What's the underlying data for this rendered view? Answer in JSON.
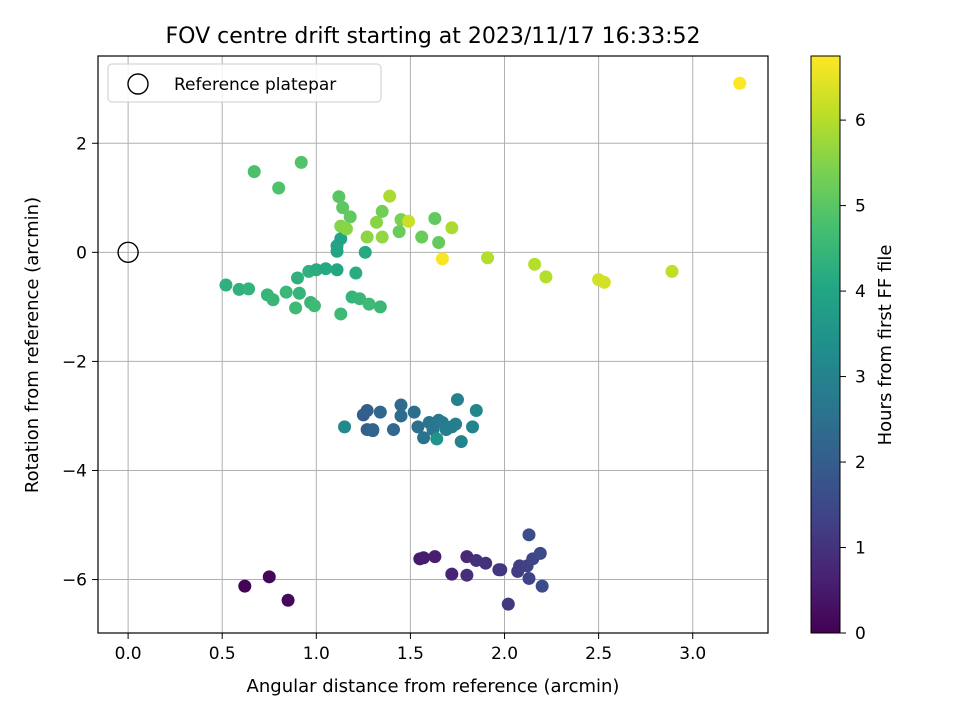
{
  "chart_data": {
    "type": "scatter",
    "title": "FOV centre drift starting at 2023/11/17 16:33:52",
    "xlabel": "Angular distance from reference (arcmin)",
    "ylabel": "Rotation from reference (arcmin)",
    "xlim": [
      -0.16,
      3.4
    ],
    "ylim": [
      -6.98,
      3.6
    ],
    "x_ticks": [
      0.0,
      0.5,
      1.0,
      1.5,
      2.0,
      2.5,
      3.0
    ],
    "x_tick_labels": [
      "0.0",
      "0.5",
      "1.0",
      "1.5",
      "2.0",
      "2.5",
      "3.0"
    ],
    "y_ticks": [
      -6,
      -4,
      -2,
      0,
      2
    ],
    "y_tick_labels": [
      "−6",
      "−4",
      "−2",
      "0",
      "2"
    ],
    "grid": true,
    "legend": {
      "placement": "top-left",
      "entries": [
        {
          "label": "Reference platepar",
          "marker": "open-circle"
        }
      ]
    },
    "reference_point": {
      "x": 0,
      "y": 0
    },
    "colorbar": {
      "label": "Hours from first FF file",
      "range": [
        0,
        6.75
      ],
      "ticks": [
        0,
        1,
        2,
        3,
        4,
        5,
        6
      ],
      "tick_labels": [
        "0",
        "1",
        "2",
        "3",
        "4",
        "5",
        "6"
      ],
      "colormap": "viridis"
    },
    "points": [
      {
        "x": 0.62,
        "y": -6.12,
        "c": 0.05
      },
      {
        "x": 0.75,
        "y": -5.95,
        "c": 0.1
      },
      {
        "x": 0.85,
        "y": -6.38,
        "c": 0.15
      },
      {
        "x": 1.55,
        "y": -5.62,
        "c": 0.5
      },
      {
        "x": 1.57,
        "y": -5.6,
        "c": 0.55
      },
      {
        "x": 1.63,
        "y": -5.58,
        "c": 0.6
      },
      {
        "x": 1.72,
        "y": -5.9,
        "c": 0.7
      },
      {
        "x": 1.8,
        "y": -5.58,
        "c": 0.8
      },
      {
        "x": 1.8,
        "y": -5.92,
        "c": 0.9
      },
      {
        "x": 1.85,
        "y": -5.65,
        "c": 0.95
      },
      {
        "x": 1.9,
        "y": -5.7,
        "c": 1.0
      },
      {
        "x": 1.97,
        "y": -5.82,
        "c": 1.05
      },
      {
        "x": 1.98,
        "y": -5.82,
        "c": 1.1
      },
      {
        "x": 2.02,
        "y": -6.45,
        "c": 1.15
      },
      {
        "x": 2.07,
        "y": -5.85,
        "c": 1.2
      },
      {
        "x": 2.08,
        "y": -5.75,
        "c": 1.25
      },
      {
        "x": 2.12,
        "y": -5.75,
        "c": 1.3
      },
      {
        "x": 2.13,
        "y": -5.98,
        "c": 1.35
      },
      {
        "x": 2.15,
        "y": -5.62,
        "c": 1.4
      },
      {
        "x": 2.19,
        "y": -5.52,
        "c": 1.5
      },
      {
        "x": 2.2,
        "y": -6.12,
        "c": 1.55
      },
      {
        "x": 2.13,
        "y": -5.18,
        "c": 1.6
      },
      {
        "x": 1.25,
        "y": -2.98,
        "c": 2.0
      },
      {
        "x": 1.27,
        "y": -2.9,
        "c": 2.05
      },
      {
        "x": 1.27,
        "y": -3.25,
        "c": 2.1
      },
      {
        "x": 1.3,
        "y": -3.27,
        "c": 2.15
      },
      {
        "x": 1.3,
        "y": -3.25,
        "c": 2.2
      },
      {
        "x": 1.34,
        "y": -2.93,
        "c": 2.25
      },
      {
        "x": 1.41,
        "y": -3.25,
        "c": 2.3
      },
      {
        "x": 1.45,
        "y": -2.8,
        "c": 2.35
      },
      {
        "x": 1.45,
        "y": -3.0,
        "c": 2.4
      },
      {
        "x": 1.52,
        "y": -2.93,
        "c": 2.45
      },
      {
        "x": 1.54,
        "y": -3.2,
        "c": 2.5
      },
      {
        "x": 1.57,
        "y": -3.4,
        "c": 2.55
      },
      {
        "x": 1.6,
        "y": -3.12,
        "c": 2.6
      },
      {
        "x": 1.62,
        "y": -3.25,
        "c": 2.65
      },
      {
        "x": 1.65,
        "y": -3.08,
        "c": 2.7
      },
      {
        "x": 1.67,
        "y": -3.12,
        "c": 2.75
      },
      {
        "x": 1.69,
        "y": -3.25,
        "c": 2.8
      },
      {
        "x": 1.72,
        "y": -3.2,
        "c": 2.85
      },
      {
        "x": 1.74,
        "y": -3.15,
        "c": 2.9
      },
      {
        "x": 1.75,
        "y": -2.7,
        "c": 2.95
      },
      {
        "x": 1.77,
        "y": -3.47,
        "c": 3.0
      },
      {
        "x": 1.83,
        "y": -3.2,
        "c": 3.05
      },
      {
        "x": 1.85,
        "y": -2.9,
        "c": 3.1
      },
      {
        "x": 1.15,
        "y": -3.2,
        "c": 3.2
      },
      {
        "x": 1.64,
        "y": -3.42,
        "c": 3.5
      },
      {
        "x": 0.52,
        "y": -0.6,
        "c": 4.3
      },
      {
        "x": 0.59,
        "y": -0.68,
        "c": 4.35
      },
      {
        "x": 0.64,
        "y": -0.67,
        "c": 4.4
      },
      {
        "x": 0.74,
        "y": -0.78,
        "c": 4.45
      },
      {
        "x": 0.77,
        "y": -0.87,
        "c": 4.5
      },
      {
        "x": 0.84,
        "y": -0.73,
        "c": 4.55
      },
      {
        "x": 0.89,
        "y": -1.02,
        "c": 4.6
      },
      {
        "x": 0.9,
        "y": -0.47,
        "c": 4.3
      },
      {
        "x": 0.91,
        "y": -0.75,
        "c": 4.4
      },
      {
        "x": 0.96,
        "y": -0.35,
        "c": 4.3
      },
      {
        "x": 0.97,
        "y": -0.92,
        "c": 4.5
      },
      {
        "x": 0.99,
        "y": -0.98,
        "c": 4.6
      },
      {
        "x": 1.0,
        "y": -0.32,
        "c": 4.2
      },
      {
        "x": 1.05,
        "y": -0.3,
        "c": 4.1
      },
      {
        "x": 1.11,
        "y": -0.32,
        "c": 4.05
      },
      {
        "x": 1.11,
        "y": 0.02,
        "c": 4.0
      },
      {
        "x": 1.11,
        "y": 0.12,
        "c": 3.95
      },
      {
        "x": 1.13,
        "y": 0.25,
        "c": 3.9
      },
      {
        "x": 1.13,
        "y": -1.13,
        "c": 4.6
      },
      {
        "x": 1.19,
        "y": -0.82,
        "c": 4.4
      },
      {
        "x": 1.21,
        "y": -0.38,
        "c": 4.2
      },
      {
        "x": 1.23,
        "y": -0.85,
        "c": 4.5
      },
      {
        "x": 1.26,
        "y": 0.0,
        "c": 4.1
      },
      {
        "x": 1.28,
        "y": -0.95,
        "c": 4.6
      },
      {
        "x": 1.34,
        "y": -1.0,
        "c": 4.55
      },
      {
        "x": 0.67,
        "y": 1.48,
        "c": 4.8
      },
      {
        "x": 0.8,
        "y": 1.18,
        "c": 4.85
      },
      {
        "x": 0.92,
        "y": 1.65,
        "c": 4.9
      },
      {
        "x": 1.12,
        "y": 1.02,
        "c": 5.0
      },
      {
        "x": 1.14,
        "y": 0.82,
        "c": 5.05
      },
      {
        "x": 1.18,
        "y": 0.65,
        "c": 5.1
      },
      {
        "x": 1.13,
        "y": 0.48,
        "c": 5.5
      },
      {
        "x": 1.16,
        "y": 0.43,
        "c": 5.55
      },
      {
        "x": 1.27,
        "y": 0.28,
        "c": 5.6
      },
      {
        "x": 1.32,
        "y": 0.55,
        "c": 5.55
      },
      {
        "x": 1.35,
        "y": 0.28,
        "c": 5.65
      },
      {
        "x": 1.35,
        "y": 0.75,
        "c": 5.3
      },
      {
        "x": 1.39,
        "y": 1.03,
        "c": 5.9
      },
      {
        "x": 1.44,
        "y": 0.38,
        "c": 5.2
      },
      {
        "x": 1.45,
        "y": 0.6,
        "c": 5.4
      },
      {
        "x": 1.49,
        "y": 0.57,
        "c": 6.2
      },
      {
        "x": 1.56,
        "y": 0.28,
        "c": 5.2
      },
      {
        "x": 1.63,
        "y": 0.62,
        "c": 5.1
      },
      {
        "x": 1.65,
        "y": 0.18,
        "c": 5.15
      },
      {
        "x": 1.72,
        "y": 0.45,
        "c": 5.9
      },
      {
        "x": 1.67,
        "y": -0.12,
        "c": 6.7
      },
      {
        "x": 1.91,
        "y": -0.1,
        "c": 6.0
      },
      {
        "x": 2.16,
        "y": -0.22,
        "c": 6.0
      },
      {
        "x": 2.22,
        "y": -0.45,
        "c": 6.0
      },
      {
        "x": 2.5,
        "y": -0.5,
        "c": 6.3
      },
      {
        "x": 2.53,
        "y": -0.55,
        "c": 6.3
      },
      {
        "x": 2.89,
        "y": -0.35,
        "c": 6.1
      },
      {
        "x": 3.25,
        "y": 3.1,
        "c": 6.75
      }
    ]
  }
}
